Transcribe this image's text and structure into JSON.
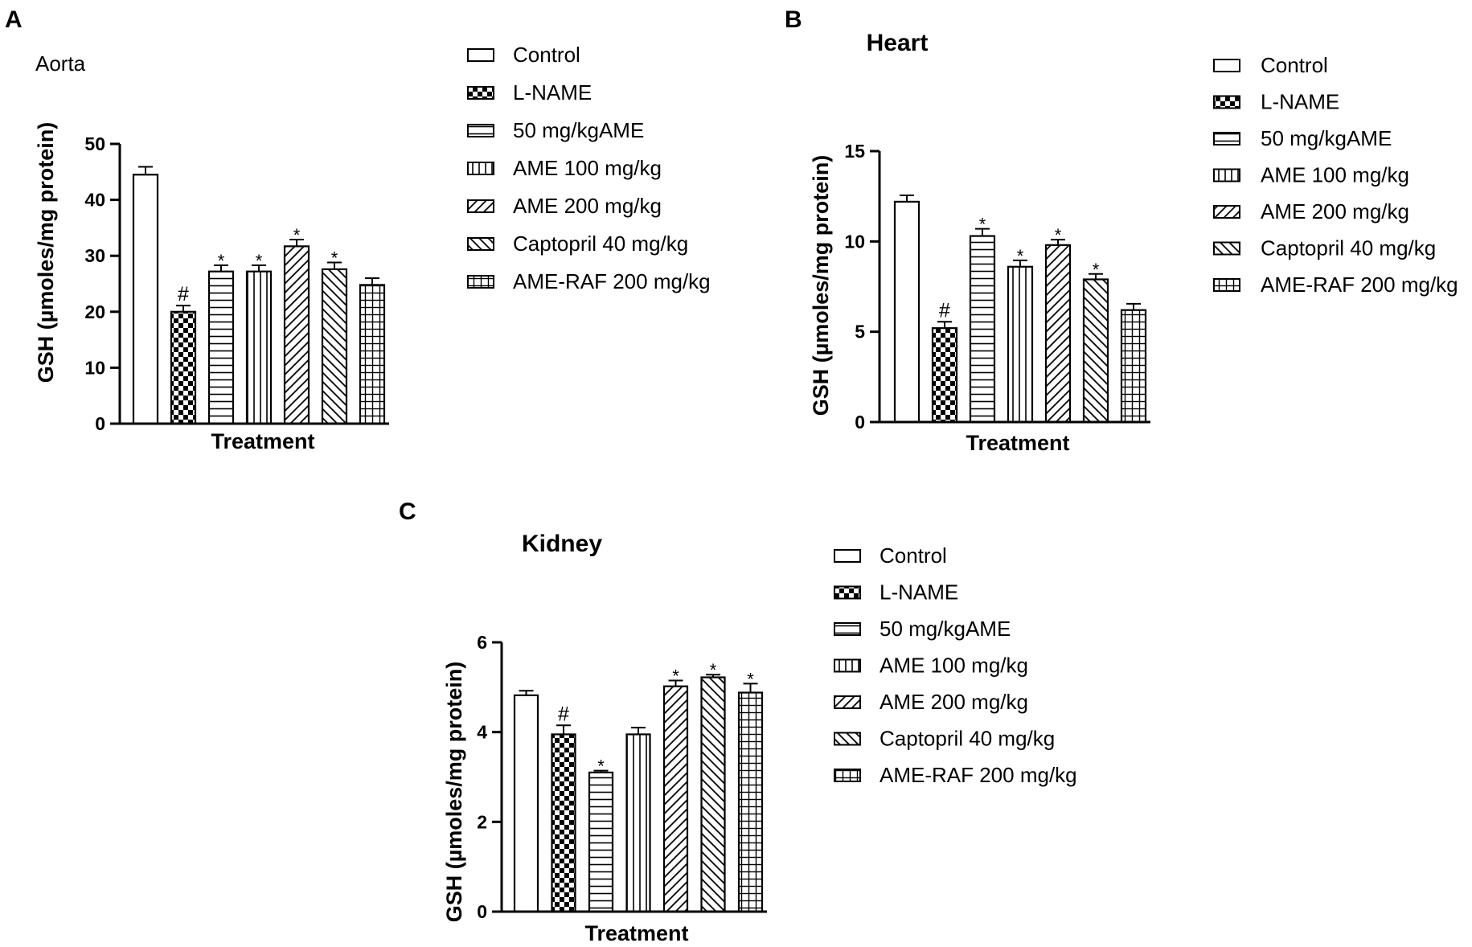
{
  "colors": {
    "ink": "#000000",
    "background": "#ffffff"
  },
  "legend": [
    "Control",
    "L-NAME",
    "50 mg/kgAME",
    "AME 100 mg/kg",
    "AME 200 mg/kg",
    "Captopril 40 mg/kg",
    "AME-RAF 200 mg/kg"
  ],
  "patterns": [
    "pattern-blank-icon",
    "pattern-checker-icon",
    "pattern-horizontal-lines-icon",
    "pattern-vertical-lines-icon",
    "pattern-diagonal-up-icon",
    "pattern-diagonal-down-icon",
    "pattern-grid-icon"
  ],
  "chart_data": [
    {
      "panel": "A",
      "type": "bar",
      "title": "Aorta",
      "xlabel": "Treatment",
      "ylabel": "GSH (µmoles/mg protein)",
      "ylim": [
        0,
        50
      ],
      "yticks": [
        0,
        10,
        20,
        30,
        40,
        50
      ],
      "categories": [
        "Control",
        "L-NAME",
        "50 mg/kgAME",
        "AME 100 mg/kg",
        "AME 200 mg/kg",
        "Captopril 40 mg/kg",
        "AME-RAF 200 mg/kg"
      ],
      "values": [
        44.5,
        20.0,
        27.2,
        27.2,
        31.7,
        27.6,
        24.8
      ],
      "errors": [
        1.4,
        1.1,
        1.1,
        1.1,
        1.2,
        1.2,
        1.2
      ],
      "significance": [
        "",
        "#",
        "*",
        "*",
        "*",
        "*",
        ""
      ],
      "legend_position": "right"
    },
    {
      "panel": "B",
      "type": "bar",
      "title": "Heart",
      "xlabel": "Treatment",
      "ylabel": "GSH (µmoles/mg protein)",
      "ylim": [
        0,
        15
      ],
      "yticks": [
        0,
        5,
        10,
        15
      ],
      "categories": [
        "Control",
        "L-NAME",
        "50 mg/kgAME",
        "AME 100 mg/kg",
        "AME 200 mg/kg",
        "Captopril 40 mg/kg",
        "AME-RAF 200 mg/kg"
      ],
      "values": [
        12.2,
        5.2,
        10.3,
        8.6,
        9.8,
        7.9,
        6.2
      ],
      "errors": [
        0.35,
        0.35,
        0.4,
        0.35,
        0.3,
        0.3,
        0.35
      ],
      "significance": [
        "",
        "#",
        "*",
        "*",
        "*",
        "*",
        ""
      ],
      "legend_position": "right"
    },
    {
      "panel": "C",
      "type": "bar",
      "title": "Kidney",
      "xlabel": "Treatment",
      "ylabel": "GSH (µmoles/mg protein)",
      "ylim": [
        0,
        6
      ],
      "yticks": [
        0,
        2,
        4,
        6
      ],
      "categories": [
        "Control",
        "L-NAME",
        "50 mg/kgAME",
        "AME 100 mg/kg",
        "AME 200 mg/kg",
        "Captopril 40 mg/kg",
        "AME-RAF 200 mg/kg"
      ],
      "values": [
        4.82,
        3.95,
        3.1,
        3.95,
        5.02,
        5.22,
        4.88
      ],
      "errors": [
        0.1,
        0.2,
        0.04,
        0.15,
        0.13,
        0.06,
        0.2
      ],
      "significance": [
        "",
        "#",
        "*",
        "",
        "*",
        "*",
        "*"
      ],
      "legend_position": "right"
    }
  ]
}
